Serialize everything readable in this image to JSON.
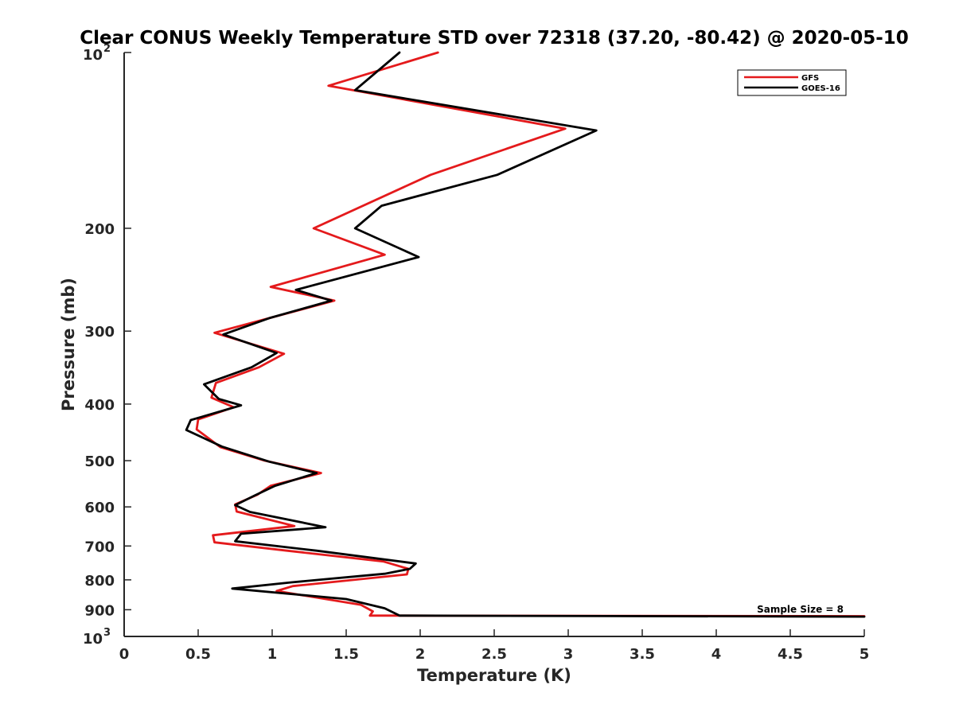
{
  "chart_data": {
    "type": "line",
    "title": "Clear CONUS Weekly Temperature STD over 72318 (37.20, -80.42) @ 2020-05-10",
    "xlabel": "Temperature (K)",
    "ylabel": "Pressure (mb)",
    "xlim": [
      0,
      5
    ],
    "ylim": [
      100,
      1000
    ],
    "y_scale": "log",
    "y_reversed": true,
    "grid": false,
    "legend_position": "top-right",
    "x_ticks": [
      {
        "value": 0,
        "label": "0"
      },
      {
        "value": 0.5,
        "label": "0.5"
      },
      {
        "value": 1,
        "label": "1"
      },
      {
        "value": 1.5,
        "label": "1.5"
      },
      {
        "value": 2,
        "label": "2"
      },
      {
        "value": 2.5,
        "label": "2.5"
      },
      {
        "value": 3,
        "label": "3"
      },
      {
        "value": 3.5,
        "label": "3.5"
      },
      {
        "value": 4,
        "label": "4"
      },
      {
        "value": 4.5,
        "label": "4.5"
      },
      {
        "value": 5,
        "label": "5"
      }
    ],
    "y_ticks": [
      {
        "value": 100,
        "base": "10",
        "exp": "2"
      },
      {
        "value": 200,
        "label": "200"
      },
      {
        "value": 300,
        "label": "300"
      },
      {
        "value": 400,
        "label": "400"
      },
      {
        "value": 500,
        "label": "500"
      },
      {
        "value": 600,
        "label": "600"
      },
      {
        "value": 700,
        "label": "700"
      },
      {
        "value": 800,
        "label": "800"
      },
      {
        "value": 900,
        "label": "900"
      },
      {
        "value": 1000,
        "base": "10",
        "exp": "3"
      }
    ],
    "annotation": "Sample Size = 8",
    "series": [
      {
        "name": "GFS",
        "color": "#e41a1c",
        "points": [
          {
            "x": 2.12,
            "y": 100
          },
          {
            "x": 1.38,
            "y": 114
          },
          {
            "x": 2.98,
            "y": 135
          },
          {
            "x": 2.07,
            "y": 162
          },
          {
            "x": 1.28,
            "y": 200
          },
          {
            "x": 1.76,
            "y": 222
          },
          {
            "x": 0.99,
            "y": 252
          },
          {
            "x": 1.42,
            "y": 266
          },
          {
            "x": 0.98,
            "y": 285
          },
          {
            "x": 0.61,
            "y": 302
          },
          {
            "x": 1.08,
            "y": 328
          },
          {
            "x": 0.91,
            "y": 346
          },
          {
            "x": 0.62,
            "y": 368
          },
          {
            "x": 0.59,
            "y": 390
          },
          {
            "x": 0.74,
            "y": 405
          },
          {
            "x": 0.5,
            "y": 425
          },
          {
            "x": 0.49,
            "y": 442
          },
          {
            "x": 0.65,
            "y": 474
          },
          {
            "x": 0.95,
            "y": 500
          },
          {
            "x": 1.33,
            "y": 525
          },
          {
            "x": 0.99,
            "y": 552
          },
          {
            "x": 0.9,
            "y": 572
          },
          {
            "x": 0.75,
            "y": 594
          },
          {
            "x": 0.76,
            "y": 611
          },
          {
            "x": 1.15,
            "y": 647
          },
          {
            "x": 0.6,
            "y": 671
          },
          {
            "x": 0.61,
            "y": 690
          },
          {
            "x": 1.1,
            "y": 713
          },
          {
            "x": 1.75,
            "y": 744
          },
          {
            "x": 1.92,
            "y": 766
          },
          {
            "x": 1.91,
            "y": 783
          },
          {
            "x": 1.14,
            "y": 820
          },
          {
            "x": 1.03,
            "y": 836
          },
          {
            "x": 1.6,
            "y": 883
          },
          {
            "x": 1.68,
            "y": 906
          },
          {
            "x": 1.66,
            "y": 921
          },
          {
            "x": 1.84,
            "y": 921
          },
          {
            "x": 5.0,
            "y": 923
          }
        ]
      },
      {
        "name": "GOES-16",
        "color": "#000000",
        "points": [
          {
            "x": 1.86,
            "y": 100
          },
          {
            "x": 1.56,
            "y": 116
          },
          {
            "x": 3.19,
            "y": 136
          },
          {
            "x": 2.52,
            "y": 162
          },
          {
            "x": 1.74,
            "y": 183
          },
          {
            "x": 1.56,
            "y": 200
          },
          {
            "x": 1.99,
            "y": 224
          },
          {
            "x": 1.16,
            "y": 255
          },
          {
            "x": 1.4,
            "y": 266
          },
          {
            "x": 0.98,
            "y": 285
          },
          {
            "x": 0.67,
            "y": 304
          },
          {
            "x": 1.03,
            "y": 327
          },
          {
            "x": 0.86,
            "y": 346
          },
          {
            "x": 0.54,
            "y": 370
          },
          {
            "x": 0.64,
            "y": 392
          },
          {
            "x": 0.79,
            "y": 402
          },
          {
            "x": 0.45,
            "y": 426
          },
          {
            "x": 0.42,
            "y": 443
          },
          {
            "x": 0.66,
            "y": 473
          },
          {
            "x": 0.98,
            "y": 502
          },
          {
            "x": 1.3,
            "y": 525
          },
          {
            "x": 1.02,
            "y": 552
          },
          {
            "x": 0.88,
            "y": 574
          },
          {
            "x": 0.75,
            "y": 596
          },
          {
            "x": 0.85,
            "y": 612
          },
          {
            "x": 1.36,
            "y": 650
          },
          {
            "x": 0.79,
            "y": 667
          },
          {
            "x": 0.75,
            "y": 687
          },
          {
            "x": 1.3,
            "y": 713
          },
          {
            "x": 1.97,
            "y": 750
          },
          {
            "x": 1.93,
            "y": 766
          },
          {
            "x": 1.76,
            "y": 781
          },
          {
            "x": 1.13,
            "y": 808
          },
          {
            "x": 0.73,
            "y": 828
          },
          {
            "x": 1.5,
            "y": 863
          },
          {
            "x": 1.76,
            "y": 895
          },
          {
            "x": 1.86,
            "y": 921
          },
          {
            "x": 5.0,
            "y": 925
          }
        ]
      }
    ]
  }
}
